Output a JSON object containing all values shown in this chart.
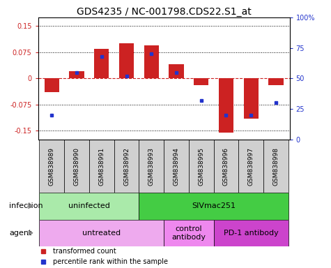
{
  "title": "GDS4235 / NC-001798.CDS22.S1_at",
  "samples": [
    "GSM838989",
    "GSM838990",
    "GSM838991",
    "GSM838992",
    "GSM838993",
    "GSM838994",
    "GSM838995",
    "GSM838996",
    "GSM838997",
    "GSM838998"
  ],
  "transformed_count": [
    -0.04,
    0.02,
    0.085,
    0.1,
    0.095,
    0.04,
    -0.02,
    -0.155,
    -0.115,
    -0.02
  ],
  "percentile_rank": [
    20,
    55,
    68,
    52,
    70,
    55,
    32,
    20,
    20,
    30
  ],
  "ylim": [
    -0.175,
    0.175
  ],
  "yticks": [
    -0.15,
    -0.075,
    0,
    0.075,
    0.15
  ],
  "right_yticks": [
    0,
    25,
    50,
    75,
    100
  ],
  "right_ylim": [
    0,
    100
  ],
  "bar_color": "#cc2222",
  "dot_color": "#2233cc",
  "infection_groups": [
    {
      "label": "uninfected",
      "start": 0,
      "end": 4,
      "color": "#aaeaaa"
    },
    {
      "label": "SIVmac251",
      "start": 4,
      "end": 10,
      "color": "#44cc44"
    }
  ],
  "agent_groups": [
    {
      "label": "untreated",
      "start": 0,
      "end": 5,
      "color": "#eeaaee"
    },
    {
      "label": "control\nantibody",
      "start": 5,
      "end": 7,
      "color": "#ee88ee"
    },
    {
      "label": "PD-1 antibody",
      "start": 7,
      "end": 10,
      "color": "#cc44cc"
    }
  ],
  "legend_items": [
    {
      "label": "transformed count",
      "color": "#cc2222"
    },
    {
      "label": "percentile rank within the sample",
      "color": "#2233cc"
    }
  ],
  "ylabel_color": "#cc2222",
  "right_ylabel_color": "#2233cc",
  "title_fontsize": 10,
  "tick_fontsize": 7,
  "sample_fontsize": 6.5,
  "label_fontsize": 8,
  "legend_fontsize": 7
}
